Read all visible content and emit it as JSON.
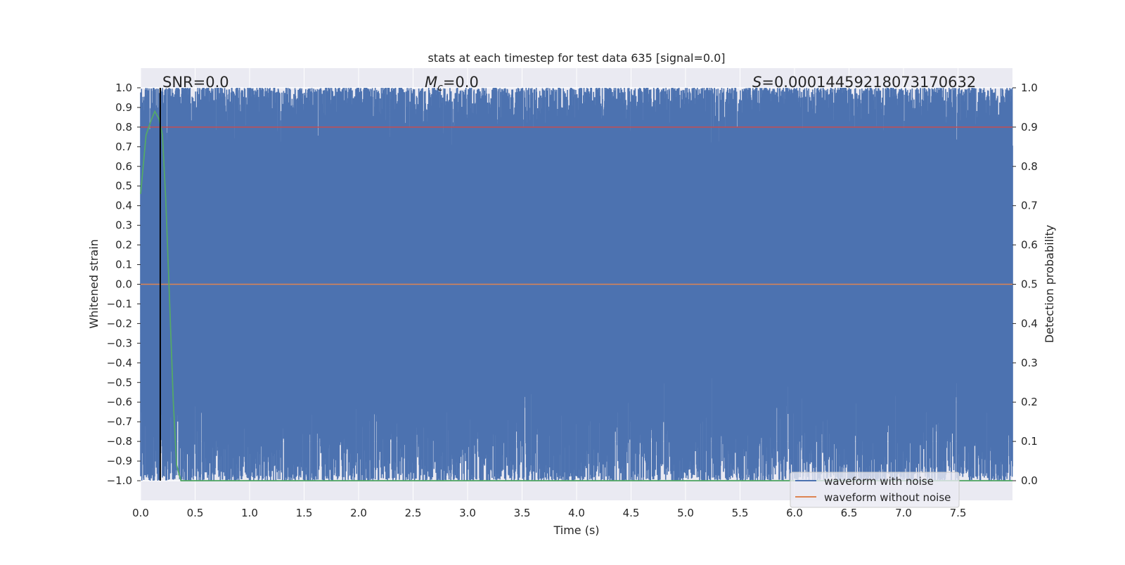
{
  "chart_data": {
    "type": "line",
    "title": "stats at each timestep for test data 635 [signal=0.0]",
    "xlabel": "Time (s)",
    "ylabel": "Whitened strain",
    "y2label": "Detection probability",
    "xlim": [
      0.0,
      8.0
    ],
    "ylim": [
      -1.1,
      1.1
    ],
    "y2lim": [
      -0.05,
      1.05
    ],
    "xticks": [
      0.0,
      0.5,
      1.0,
      1.5,
      2.0,
      2.5,
      3.0,
      3.5,
      4.0,
      4.5,
      5.0,
      5.5,
      6.0,
      6.5,
      7.0,
      7.5
    ],
    "xtick_labels": [
      "0.0",
      "0.5",
      "1.0",
      "1.5",
      "2.0",
      "2.5",
      "3.0",
      "3.5",
      "4.0",
      "4.5",
      "5.0",
      "5.5",
      "6.0",
      "6.5",
      "7.0",
      "7.5"
    ],
    "yticks": [
      1.0,
      0.9,
      0.8,
      0.7,
      0.6,
      0.5,
      0.4,
      0.3,
      0.2,
      0.1,
      0.0,
      -0.1,
      -0.2,
      -0.3,
      -0.4,
      -0.5,
      -0.6,
      -0.7,
      -0.8,
      -0.9,
      -1.0
    ],
    "ytick_labels": [
      "1.0",
      "0.9",
      "0.8",
      "0.7",
      "0.6",
      "0.5",
      "0.4",
      "0.3",
      "0.2",
      "0.1",
      "0.0",
      "−0.1",
      "−0.2",
      "−0.3",
      "−0.4",
      "−0.5",
      "−0.6",
      "−0.7",
      "−0.8",
      "−0.9",
      "−1.0"
    ],
    "y2ticks": [
      1.0,
      0.9,
      0.8,
      0.7,
      0.6,
      0.5,
      0.4,
      0.3,
      0.2,
      0.1,
      0.0
    ],
    "y2tick_labels": [
      "1.0",
      "0.9",
      "0.8",
      "0.7",
      "0.6",
      "0.5",
      "0.4",
      "0.3",
      "0.2",
      "0.1",
      "0.0"
    ],
    "grid": true,
    "series": [
      {
        "name": "waveform with noise",
        "axis": "left",
        "color": "#4c72b0",
        "style": "dense noise filling roughly -1.0 to 1.0",
        "x": [
          0.0,
          8.0
        ],
        "y_envelope": [
          -1.0,
          1.0
        ]
      },
      {
        "name": "waveform without noise",
        "axis": "left",
        "color": "#dd8452",
        "x": [
          0.0,
          8.0
        ],
        "y": [
          0.0,
          0.0
        ]
      },
      {
        "name": "detection probability",
        "axis": "right",
        "color": "#55a868",
        "x": [
          0.0,
          0.05,
          0.1,
          0.13,
          0.17,
          0.2,
          0.23,
          0.26,
          0.3,
          0.33,
          0.37,
          0.4,
          8.0
        ],
        "y": [
          0.73,
          0.88,
          0.92,
          0.94,
          0.92,
          0.88,
          0.72,
          0.5,
          0.2,
          0.04,
          0.0,
          0.0,
          0.0
        ]
      },
      {
        "name": "threshold",
        "axis": "right",
        "color": "#c44e52",
        "x": [
          0.0,
          8.0
        ],
        "y": [
          0.9,
          0.9
        ]
      }
    ],
    "vline": {
      "x": 0.18,
      "color": "#000000"
    },
    "annotations": {
      "snr": "SNR=0.0",
      "mc_symbol": "M",
      "mc_sub": "c",
      "mc_value": "=0.0",
      "s_symbol": "S",
      "s_value": "=0.0001445921807317​0632"
    },
    "legend": {
      "position": "bottom-right",
      "entries": [
        {
          "label": "waveform with noise",
          "color": "#4c72b0"
        },
        {
          "label": "waveform without noise",
          "color": "#dd8452"
        }
      ]
    },
    "colors": {
      "plot_bg": "#eaeaf2",
      "grid": "#ffffff",
      "noise": "#4c72b0",
      "clean": "#dd8452",
      "prob": "#55a868",
      "threshold": "#c44e52"
    }
  }
}
